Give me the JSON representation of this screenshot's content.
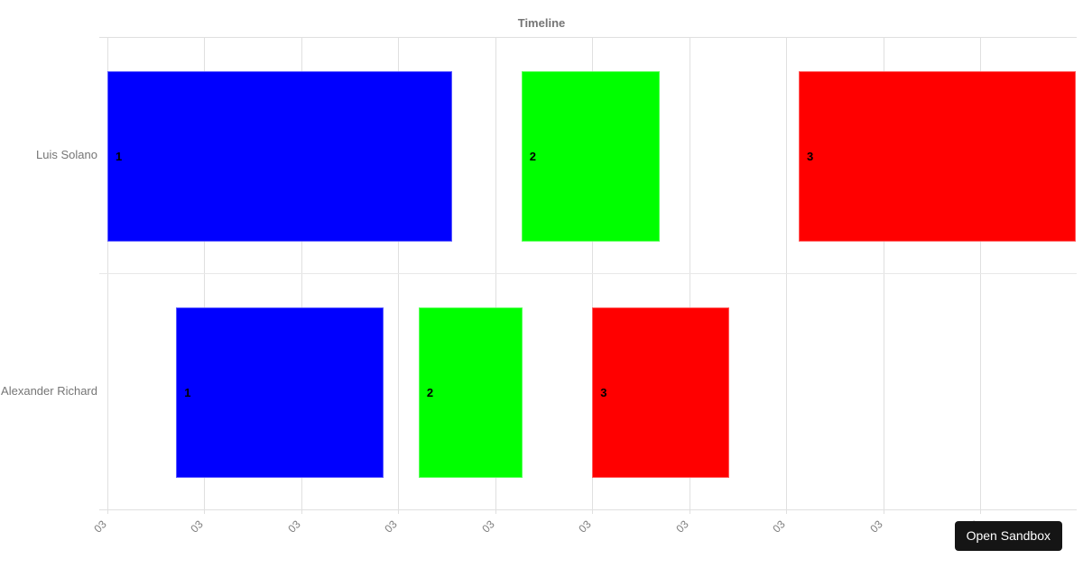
{
  "chart_data": {
    "type": "timeline",
    "title": "Timeline",
    "legend": "none",
    "grid": true,
    "x_axis": {
      "tick_labels": [
        "03",
        "03",
        "03",
        "03",
        "03",
        "03",
        "03",
        "03",
        "03",
        "03"
      ],
      "tick_label_rotation_deg": -45,
      "units": "axis tick intervals (0 = first gridline, spacing = 1)"
    },
    "rows": [
      {
        "label": "Luis Solano",
        "bars": [
          {
            "label": "1",
            "color": "#0000ff",
            "start": 0.0,
            "end": 3.56
          },
          {
            "label": "2",
            "color": "#00ff00",
            "start": 4.27,
            "end": 5.7
          },
          {
            "label": "3",
            "color": "#ff0000",
            "start": 7.13,
            "end": 9.99
          }
        ]
      },
      {
        "label": "Alexander Richard",
        "bars": [
          {
            "label": "1",
            "color": "#0000ff",
            "start": 0.71,
            "end": 2.85
          },
          {
            "label": "2",
            "color": "#00ff00",
            "start": 3.21,
            "end": 4.28
          },
          {
            "label": "3",
            "color": "#ff0000",
            "start": 5.0,
            "end": 6.41
          }
        ]
      }
    ]
  },
  "sandbox_button": {
    "label": "Open Sandbox"
  },
  "colors": {
    "bar_blue": "#0000ff",
    "bar_green": "#00ff00",
    "bar_red": "#ff0000",
    "gridline": "#e0e0e0",
    "label_text": "#757575",
    "button_bg": "#151515",
    "button_fg": "#ffffff"
  }
}
